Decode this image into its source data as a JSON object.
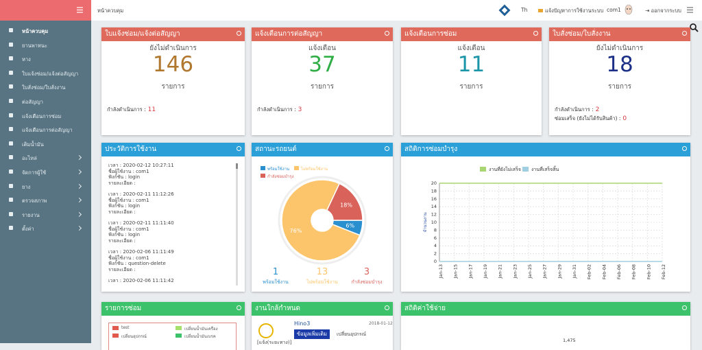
{
  "sidebar": {
    "active": 0,
    "items": [
      {
        "label": "หน้าควบคุม",
        "submenu": false
      },
      {
        "label": "ยานพาหนะ",
        "submenu": false
      },
      {
        "label": "หาง",
        "submenu": false
      },
      {
        "label": "ใบแจ้งซ่อม/แจ้งต่อสัญญา",
        "submenu": false
      },
      {
        "label": "ใบสั่งซ่อม/ใบสั่งงาน",
        "submenu": false
      },
      {
        "label": "ต่อสัญญา",
        "submenu": false
      },
      {
        "label": "แจ้งเตือนการซ่อม",
        "submenu": false
      },
      {
        "label": "แจ้งเตือนการต่อสัญญา",
        "submenu": false
      },
      {
        "label": "เติมน้ำมัน",
        "submenu": false
      },
      {
        "label": "อะไหล่",
        "submenu": true
      },
      {
        "label": "จัดการผู้ใช้",
        "submenu": true
      },
      {
        "label": "ยาง",
        "submenu": true
      },
      {
        "label": "ตรวจสภาพ",
        "submenu": true
      },
      {
        "label": "รายงาน",
        "submenu": true
      },
      {
        "label": "ตั้งค่า",
        "submenu": true
      }
    ]
  },
  "topbar": {
    "page_title": "หน้าควบคุม",
    "language": "Th",
    "report": "แจ้งปัญหาการใช้งานระบบ",
    "user": "com1",
    "logout": "ออกจากระบบ"
  },
  "summary_cards": [
    {
      "title": "ใบแจ้งซ่อม/แจ้งต่อสัญญา",
      "status": "ยังไม่ดำเนินการ",
      "count": 146,
      "unit": "รายการ",
      "color": "#b0782e",
      "footer": [
        {
          "label": "กำลังดำเนินการ :",
          "value": 11
        }
      ]
    },
    {
      "title": "แจ้งเตือนการต่อสัญญา",
      "status": "แจ้งเตือน",
      "count": 37,
      "unit": "รายการ",
      "color": "#2fae46",
      "footer": [
        {
          "label": "กำลังดำเนินการ :",
          "value": 3
        }
      ]
    },
    {
      "title": "แจ้งเตือนการซ่อม",
      "status": "แจ้งเตือน",
      "count": 11,
      "unit": "รายการ",
      "color": "#1b95a8",
      "footer": []
    },
    {
      "title": "ใบสั่งซ่อม/ใบสั่งงาน",
      "status": "ยังไม่ดำเนินการ",
      "count": 18,
      "unit": "รายการ",
      "color": "#1c2f86",
      "footer": [
        {
          "label": "กำลังดำเนินการ :",
          "value": 2
        },
        {
          "label": "ซ่อมเสร็จ (ยังไม่ได้รับสินค้า) :",
          "value": 0
        }
      ]
    }
  ],
  "history": {
    "title": "ประวัติการใช้งาน",
    "entries": [
      [
        "เวลา : 2020-02-12 10:27:11",
        "ชื่อผู้ใช้งาน : com1",
        "ฟังก์ชัน : login",
        "รายละเอียด :"
      ],
      [
        "เวลา : 2020-02-11 11:12:26",
        "ชื่อผู้ใช้งาน : com1",
        "ฟังก์ชัน : login",
        "รายละเอียด :"
      ],
      [
        "เวลา : 2020-02-11 11:11:40",
        "ชื่อผู้ใช้งาน : com1",
        "ฟังก์ชัน : login",
        "รายละเอียด :"
      ],
      [
        "เวลา : 2020-02-06 11:11:49",
        "ชื่อผู้ใช้งาน : com1",
        "ฟังก์ชัน : question-delete",
        "รายละเอียด :"
      ],
      [
        "เวลา : 2020-02-06 11:11:42"
      ]
    ]
  },
  "vehicle_status": {
    "counts": [
      1,
      13,
      3
    ]
  },
  "chart_data": [
    {
      "type": "pie",
      "title": "สถานะรถยนต์",
      "categories": [
        "พร้อมใช้งาน",
        "ไม่พร้อมใช้งาน",
        "กำลังซ่อมบำรุง"
      ],
      "values": [
        6,
        76,
        18
      ],
      "value_labels": [
        "6%",
        "76%",
        "18%"
      ],
      "colors": [
        "#2a8fcf",
        "#fdc56b",
        "#d9625a"
      ]
    },
    {
      "type": "line",
      "title": "สถิติการซ่อมบำรุง",
      "y_label": "จำนวนงาน",
      "categories": [
        "Jan-13",
        "Jan-15",
        "Jan-17",
        "Jan-19",
        "Jan-21",
        "Jan-23",
        "Jan-25",
        "Jan-27",
        "Jan-29",
        "Jan-31",
        "Feb-02",
        "Feb-04",
        "Feb-06",
        "Feb-08",
        "Feb-10",
        "Feb-12"
      ],
      "series": [
        {
          "name": "งานที่ยังไม่เสร็จ",
          "color": "#a8d672",
          "values": [
            20,
            20,
            20,
            20,
            20,
            20,
            20,
            20,
            20,
            20,
            20,
            20,
            20,
            20,
            20,
            20
          ]
        },
        {
          "name": "งานที่เสร็จสิ้น",
          "color": "#9fcfe0",
          "values": [
            0,
            0,
            0,
            0,
            0,
            0,
            0,
            0,
            0,
            0,
            0,
            0,
            0,
            0,
            0,
            0
          ]
        }
      ],
      "ylim": [
        0,
        20
      ],
      "yticks": [
        0,
        2,
        4,
        6,
        8,
        10,
        12,
        14,
        16,
        18,
        20
      ],
      "grid": true
    }
  ],
  "bottom": {
    "repairs": {
      "title": "รายการซ่อม",
      "legend": [
        {
          "name": "test",
          "color": "#e05a4e"
        },
        {
          "name": "เปลี่ยนน้ำมันเครื่อง",
          "color": "#a6e06a"
        },
        {
          "name": "เปลี่ยนอุปกรณ์",
          "color": "#e05a4e"
        },
        {
          "name": "เปลี่ยนน้ำมันเบรค",
          "color": "#3cc26a"
        }
      ]
    },
    "due": {
      "title": "งานใกล้กำหนด",
      "vehicle": "Hino3",
      "date": "2018-01-12",
      "button": "ข้อมูลเพิ่มเติม",
      "task": "เปลี่ยนอุปกรณ์",
      "note": "[แจ้ง(ระยะทาง)]"
    },
    "cost": {
      "title": "สถิติค่าใช้จ่าย",
      "tick": "1,475"
    }
  }
}
